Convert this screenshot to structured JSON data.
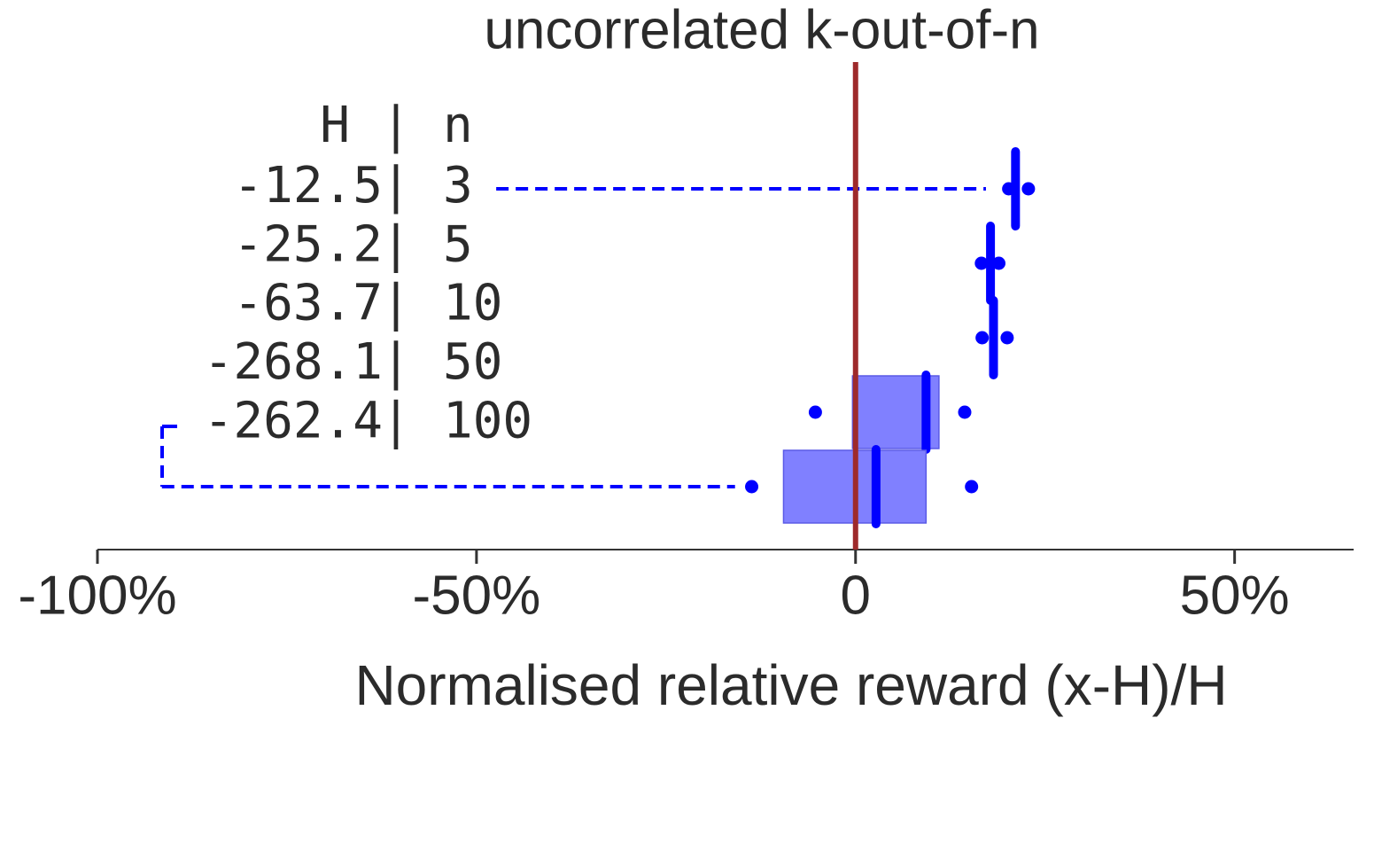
{
  "chart_data": {
    "type": "box",
    "orientation": "horizontal",
    "title": "uncorrelated k-out-of-n",
    "xlabel": "Normalised relative reward (x-H)/H",
    "xlim": [
      -100,
      65.7
    ],
    "xticks": [
      {
        "value": -100,
        "label": "-100%"
      },
      {
        "value": -50,
        "label": "-50%"
      },
      0,
      {
        "value": 50,
        "label": "50%"
      }
    ],
    "reference_line": 0,
    "reference_color": "#9e2a2b",
    "color": "#0000ff",
    "box_color": "#8080ff",
    "header": [
      "H",
      "n"
    ],
    "separator": "|",
    "H": [
      -12.5,
      -25.2,
      -63.7,
      -268.1,
      -262.4
    ],
    "n": [
      3,
      5,
      10,
      50,
      100
    ],
    "whiskers": [
      [
        -47.4,
        17.2
      ],
      null,
      null,
      null,
      [
        -91.5,
        -15.9
      ]
    ],
    "q1": [
      null,
      null,
      null,
      -0.4,
      -9.5
    ],
    "median": [
      21.1,
      17.8,
      18.2,
      9.3,
      2.7
    ],
    "q3": [
      null,
      null,
      null,
      11.0,
      9.3
    ],
    "points": [
      [
        20.2,
        22.8
      ],
      [
        16.6,
        18.9
      ],
      [
        16.7,
        20.0
      ],
      [
        -5.3,
        14.4
      ],
      [
        -13.7,
        15.3
      ]
    ]
  }
}
